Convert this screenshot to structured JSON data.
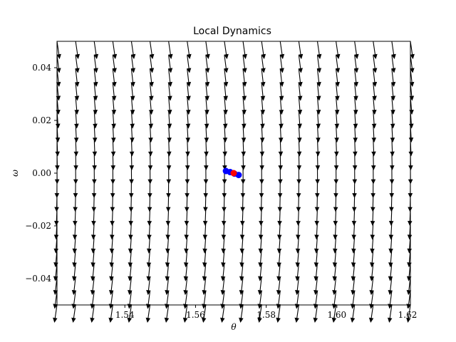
{
  "chart_data": {
    "type": "quiver",
    "title": "Local Dynamics",
    "xlabel": "θ",
    "ylabel": "ω",
    "xlim": [
      1.5208,
      1.6208
    ],
    "ylim": [
      -0.05,
      0.05
    ],
    "grid": false,
    "legend": "none",
    "x_ticks": [
      1.54,
      1.56,
      1.58,
      1.6,
      1.62
    ],
    "x_tick_labels": [
      "1.54",
      "1.56",
      "1.58",
      "1.60",
      "1.62"
    ],
    "y_ticks": [
      0.04,
      0.02,
      0.0,
      -0.02,
      -0.04
    ],
    "y_tick_labels": [
      "0.04",
      "0.02",
      "0.00",
      "−0.02",
      "−0.04"
    ],
    "field": {
      "description": "vector field (dθ, dω) = (ω, −9.81·sin(θ))+ linearised about θ = π/2",
      "center": [
        1.5708,
        0.0
      ],
      "grid_nx": 20,
      "grid_ny": 20
    },
    "scatter_points": [
      {
        "x": 1.5686,
        "y": 0.0008,
        "color": "#0000ff"
      },
      {
        "x": 1.5698,
        "y": 0.0004,
        "color": "#0000ff"
      },
      {
        "x": 1.571,
        "y": -0.0002,
        "color": "#0000ff"
      },
      {
        "x": 1.5722,
        "y": -0.0007,
        "color": "#0000ff"
      },
      {
        "x": 1.5708,
        "y": 0.0,
        "color": "#ff0000"
      }
    ],
    "colors": {
      "arrows": "#000000",
      "trajectory": "#0000ff",
      "equilibrium": "#ff0000"
    }
  }
}
